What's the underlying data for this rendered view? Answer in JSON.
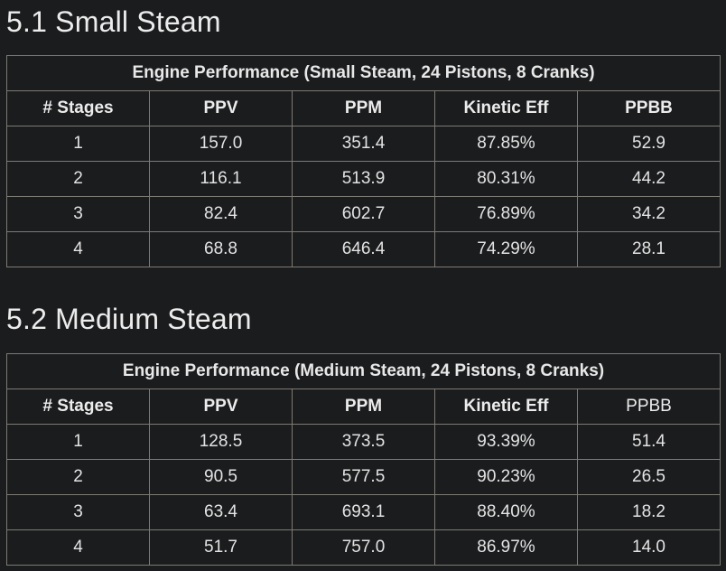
{
  "sections": [
    {
      "heading": "5.1 Small Steam",
      "table": {
        "caption": "Engine Performance (Small Steam, 24 Pistons, 8 Cranks)",
        "headers": [
          "# Stages",
          "PPV",
          "PPM",
          "Kinetic Eff",
          "PPBB"
        ],
        "rows": [
          [
            "1",
            "157.0",
            "351.4",
            "87.85%",
            "52.9"
          ],
          [
            "2",
            "116.1",
            "513.9",
            "80.31%",
            "44.2"
          ],
          [
            "3",
            "82.4",
            "602.7",
            "76.89%",
            "34.2"
          ],
          [
            "4",
            "68.8",
            "646.4",
            "74.29%",
            "28.1"
          ]
        ]
      }
    },
    {
      "heading": "5.2 Medium Steam",
      "table": {
        "caption": "Engine Performance (Medium Steam, 24 Pistons, 8 Cranks)",
        "headers": [
          "# Stages",
          "PPV",
          "PPM",
          "Kinetic Eff",
          "PPBB"
        ],
        "rows": [
          [
            "1",
            "128.5",
            "373.5",
            "93.39%",
            "51.4"
          ],
          [
            "2",
            "90.5",
            "577.5",
            "90.23%",
            "26.5"
          ],
          [
            "3",
            "63.4",
            "693.1",
            "88.40%",
            "18.2"
          ],
          [
            "4",
            "51.7",
            "757.0",
            "86.97%",
            "14.0"
          ]
        ]
      }
    }
  ]
}
